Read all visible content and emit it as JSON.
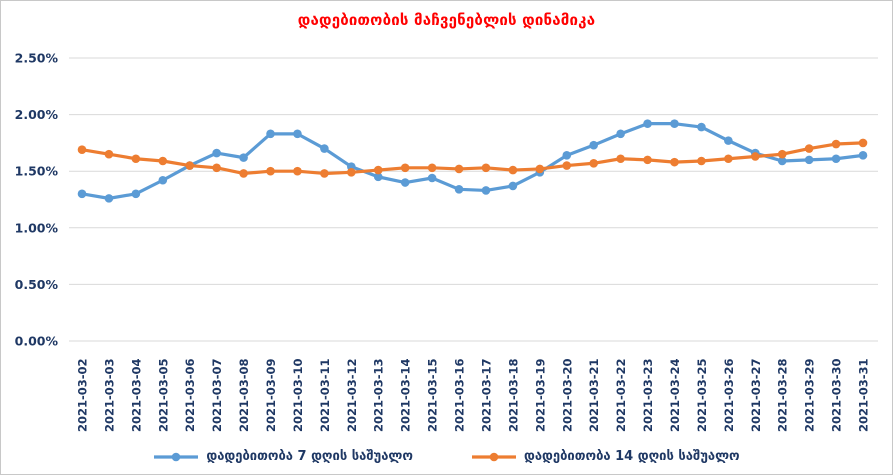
{
  "chart_data": {
    "type": "line",
    "title": "დადებითობის მაჩვენებლის დინამიკა",
    "title_color": "#FF0000",
    "xlabel": "",
    "ylabel": "",
    "ylim": [
      0,
      2.5
    ],
    "yticks": [
      "0.00%",
      "0.50%",
      "1.00%",
      "1.50%",
      "2.00%",
      "2.50%"
    ],
    "ytick_values": [
      0,
      0.5,
      1.0,
      1.5,
      2.0,
      2.5
    ],
    "grid": true,
    "gridline_color": "#D9D9D9",
    "axis_text_color": "#1F3864",
    "legend_position": "bottom",
    "categories": [
      "2021-03-02",
      "2021-03-03",
      "2021-03-04",
      "2021-03-05",
      "2021-03-06",
      "2021-03-07",
      "2021-03-08",
      "2021-03-09",
      "2021-03-10",
      "2021-03-11",
      "2021-03-12",
      "2021-03-13",
      "2021-03-14",
      "2021-03-15",
      "2021-03-16",
      "2021-03-17",
      "2021-03-18",
      "2021-03-19",
      "2021-03-20",
      "2021-03-21",
      "2021-03-22",
      "2021-03-23",
      "2021-03-24",
      "2021-03-25",
      "2021-03-26",
      "2021-03-27",
      "2021-03-28",
      "2021-03-29",
      "2021-03-30",
      "2021-03-31"
    ],
    "series": [
      {
        "name": "დადებითობა 7 დღის საშუალო",
        "color": "#5B9BD5",
        "unit": "%",
        "values": [
          1.3,
          1.26,
          1.3,
          1.42,
          1.55,
          1.66,
          1.62,
          1.83,
          1.83,
          1.7,
          1.54,
          1.45,
          1.4,
          1.44,
          1.34,
          1.33,
          1.37,
          1.49,
          1.64,
          1.73,
          1.83,
          1.92,
          1.92,
          1.89,
          1.77,
          1.66,
          1.59,
          1.6,
          1.61,
          1.64
        ]
      },
      {
        "name": "დადებითობა 14 დღის საშუალო",
        "color": "#ED7D31",
        "unit": "%",
        "values": [
          1.69,
          1.65,
          1.61,
          1.59,
          1.55,
          1.53,
          1.48,
          1.5,
          1.5,
          1.48,
          1.49,
          1.51,
          1.53,
          1.53,
          1.52,
          1.53,
          1.51,
          1.52,
          1.55,
          1.57,
          1.61,
          1.6,
          1.58,
          1.59,
          1.61,
          1.63,
          1.65,
          1.7,
          1.74,
          1.75
        ]
      }
    ]
  }
}
